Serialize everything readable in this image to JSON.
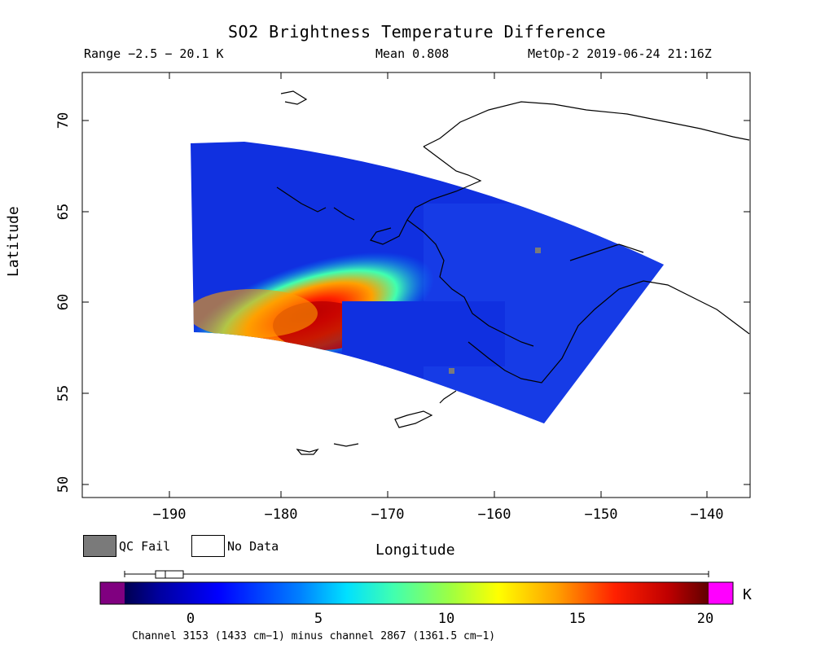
{
  "header": {
    "title": "SO2 Brightness Temperature Difference",
    "range": "Range −2.5 − 20.1 K",
    "mean": "Mean 0.808",
    "satellite_time": "MetOp-2 2019-06-24 21:16Z"
  },
  "axes": {
    "x_label": "Longitude",
    "y_label": "Latitude",
    "x_ticks": [
      "−190",
      "−180",
      "−170",
      "−160",
      "−150",
      "−140"
    ],
    "y_ticks": [
      "70",
      "65",
      "60",
      "55",
      "50"
    ]
  },
  "legend": {
    "qc_fail": "QC Fail",
    "no_data": "No Data",
    "qc_color": "#7a7a7a"
  },
  "colorbar": {
    "unit": "K",
    "ticks": [
      "0",
      "5",
      "10",
      "15",
      "20"
    ],
    "under_color": "#800080",
    "over_color": "#ff00ff",
    "caption": "Channel 3153 (1433 cm−1) minus channel 2867 (1361.5 cm−1)"
  }
}
